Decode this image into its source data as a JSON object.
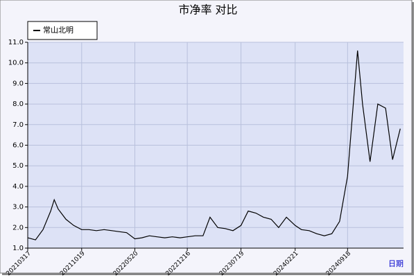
{
  "chart_data": {
    "type": "line",
    "title": "市净率  对比",
    "x_label": "日期",
    "x": [
      "20210317",
      "20210417",
      "20210517",
      "20210617",
      "20210701",
      "20210717",
      "20210817",
      "20210917",
      "20211019",
      "20211117",
      "20211217",
      "20220117",
      "20220217",
      "20220317",
      "20220417",
      "20220520",
      "20220617",
      "20220717",
      "20220817",
      "20220917",
      "20221017",
      "20221117",
      "20221216",
      "20230117",
      "20230217",
      "20230317",
      "20230417",
      "20230517",
      "20230617",
      "20230719",
      "20230817",
      "20230917",
      "20231017",
      "20231117",
      "20231217",
      "20240117",
      "20240221",
      "20240317",
      "20240417",
      "20240517",
      "20240617",
      "20240717",
      "20240817",
      "20240918",
      "20241028",
      "20241117",
      "20241217",
      "20250117",
      "20250217",
      "20250317",
      "20250417"
    ],
    "series": [
      {
        "name": "常山北明",
        "color": "#000000",
        "values": [
          1.5,
          1.4,
          1.9,
          2.8,
          3.35,
          2.9,
          2.4,
          2.1,
          1.9,
          1.9,
          1.85,
          1.9,
          1.85,
          1.8,
          1.75,
          1.45,
          1.5,
          1.6,
          1.55,
          1.5,
          1.55,
          1.5,
          1.55,
          1.6,
          1.6,
          2.5,
          2.0,
          1.95,
          1.85,
          2.1,
          2.8,
          2.7,
          2.5,
          2.4,
          2.0,
          2.5,
          2.1,
          1.9,
          1.85,
          1.7,
          1.6,
          1.7,
          2.3,
          4.5,
          10.6,
          8.0,
          5.2,
          8.0,
          7.8,
          5.3,
          6.8
        ]
      }
    ],
    "xlim": [
      "20210317",
      "20250430"
    ],
    "xticks": [
      "20210317",
      "20211019",
      "20220520",
      "20221216",
      "20230719",
      "20240221",
      "20240918"
    ],
    "ylim": [
      1,
      11
    ],
    "yticks": [
      {
        "value": 1,
        "label": "1.0"
      },
      {
        "value": 2,
        "label": "2.0"
      },
      {
        "value": 3,
        "label": "3.0"
      },
      {
        "value": 4,
        "label": "4.0"
      },
      {
        "value": 5,
        "label": "5.0"
      },
      {
        "value": 6,
        "label": "6.0"
      },
      {
        "value": 7,
        "label": "7.0"
      },
      {
        "value": 8,
        "label": "8.0"
      },
      {
        "value": 9,
        "label": "9.0"
      },
      {
        "value": 10,
        "label": "10.0"
      },
      {
        "value": 11,
        "label": "11.0"
      }
    ],
    "grid": true,
    "legend": "top-left"
  }
}
